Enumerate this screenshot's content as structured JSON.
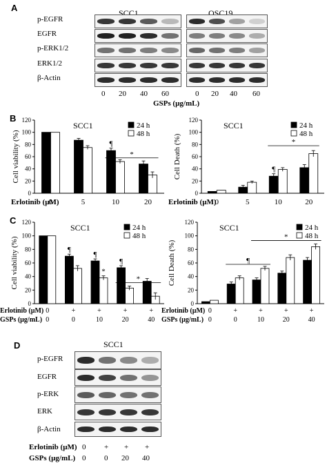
{
  "panels": {
    "A": {
      "letter": "A",
      "cell_lines": [
        "SCC1",
        "OSC19"
      ],
      "rows": [
        "p-EGFR",
        "EGFR",
        "p-ERK1/2",
        "ERK1/2",
        "β-Actin"
      ],
      "doses": [
        "0",
        "20",
        "40",
        "60"
      ],
      "xlabel": "GSPs (µg/mL)",
      "band_intensity": {
        "SCC1": [
          [
            0.85,
            0.85,
            0.7,
            0.3
          ],
          [
            0.95,
            0.95,
            0.9,
            0.6
          ],
          [
            0.6,
            0.6,
            0.55,
            0.5
          ],
          [
            0.85,
            0.85,
            0.85,
            0.85
          ],
          [
            0.9,
            0.9,
            0.9,
            0.9
          ]
        ],
        "OSC19": [
          [
            0.9,
            0.75,
            0.4,
            0.2
          ],
          [
            0.55,
            0.55,
            0.5,
            0.35
          ],
          [
            0.65,
            0.6,
            0.55,
            0.4
          ],
          [
            0.85,
            0.85,
            0.85,
            0.85
          ],
          [
            0.9,
            0.9,
            0.9,
            0.9
          ]
        ]
      }
    },
    "B": {
      "letter": "B"
    },
    "C": {
      "letter": "C"
    },
    "D": {
      "letter": "D",
      "cell_line": "SCC1",
      "rows": [
        "p-EGFR",
        "EGFR",
        "p-ERK",
        "ERK",
        "β-Actin"
      ],
      "erlotinib_label": "Erlotinib (µM)",
      "gsps_label": "GSPs (µg/mL)",
      "erlotinib": [
        "0",
        "+",
        "+",
        "+"
      ],
      "gsps": [
        "0",
        "0",
        "20",
        "40"
      ],
      "band_intensity": [
        [
          0.9,
          0.6,
          0.5,
          0.35
        ],
        [
          0.9,
          0.8,
          0.6,
          0.45
        ],
        [
          0.7,
          0.65,
          0.6,
          0.6
        ],
        [
          0.85,
          0.85,
          0.85,
          0.85
        ],
        [
          0.9,
          0.9,
          0.9,
          0.9
        ]
      ]
    }
  },
  "chart_data": [
    {
      "id": "B-viability",
      "type": "bar",
      "title": "SCC1",
      "ylabel": "Cell viability (%)",
      "ylim": [
        0,
        120
      ],
      "yticks": [
        0,
        20,
        40,
        60,
        80,
        100,
        120
      ],
      "xrow_label": "Erlotinib (µM)",
      "categories": [
        "0",
        "5",
        "10",
        "20"
      ],
      "series": [
        {
          "name": "24 h",
          "color": "#000000",
          "values": [
            100,
            87,
            70,
            48
          ],
          "err": [
            0,
            3,
            4,
            5
          ]
        },
        {
          "name": "48 h",
          "color": "#ffffff",
          "values": [
            100,
            75,
            52,
            30
          ],
          "err": [
            0,
            3,
            3,
            5
          ]
        }
      ],
      "annotations": [
        {
          "text": "¶",
          "cat": 2,
          "series": 0
        },
        {
          "text": "*",
          "line": [
            2,
            3
          ],
          "y": 58
        }
      ]
    },
    {
      "id": "B-death",
      "type": "bar",
      "title": "SCC1",
      "ylabel": "Cell Death (%)",
      "ylim": [
        0,
        120
      ],
      "yticks": [
        0,
        20,
        40,
        60,
        80,
        100,
        120
      ],
      "xrow_label": "Erlotinib (µM)",
      "categories": [
        "0",
        "5",
        "10",
        "20"
      ],
      "series": [
        {
          "name": "24 h",
          "color": "#000000",
          "values": [
            3,
            10,
            28,
            42
          ],
          "err": [
            0,
            3,
            4,
            5
          ]
        },
        {
          "name": "48 h",
          "color": "#ffffff",
          "values": [
            5,
            18,
            39,
            65
          ],
          "err": [
            0,
            2,
            3,
            5
          ]
        }
      ],
      "annotations": [
        {
          "text": "¶",
          "cat": 2,
          "series": 0
        },
        {
          "text": "*",
          "line": [
            2,
            3
          ],
          "y": 78
        }
      ]
    },
    {
      "id": "C-viability",
      "type": "bar",
      "title": "SCC1",
      "ylabel": "Cell viability (%)",
      "ylim": [
        0,
        120
      ],
      "yticks": [
        0,
        20,
        40,
        60,
        80,
        100,
        120
      ],
      "xrows": [
        {
          "label": "Erlotinib (µM)",
          "values": [
            "0",
            "+",
            "+",
            "+",
            "+"
          ]
        },
        {
          "label": "GSPs (µg/mL)",
          "values": [
            "0",
            "0",
            "10",
            "20",
            "40"
          ]
        }
      ],
      "series": [
        {
          "name": "24 h",
          "color": "#000000",
          "values": [
            100,
            70,
            63,
            53,
            33
          ],
          "err": [
            0,
            3,
            3,
            3,
            4
          ]
        },
        {
          "name": "48 h",
          "color": "#ffffff",
          "values": [
            100,
            52,
            38,
            23,
            11
          ],
          "err": [
            0,
            4,
            3,
            3,
            5
          ]
        }
      ],
      "annotations": [
        {
          "text": "¶",
          "cat": 1,
          "series": 0
        },
        {
          "text": "¶",
          "cat": 2,
          "series": 0
        },
        {
          "text": "*",
          "cat": 2,
          "series": 1
        },
        {
          "text": "¶",
          "cat": 3,
          "series": 0
        },
        {
          "text": "*",
          "line": [
            3,
            4
          ],
          "y": 31
        }
      ]
    },
    {
      "id": "C-death",
      "type": "bar",
      "title": "SCC1",
      "ylabel": "Cell Death (%)",
      "ylim": [
        0,
        120
      ],
      "yticks": [
        0,
        20,
        40,
        60,
        80,
        100,
        120
      ],
      "xrows": [
        {
          "label": "Erlotinib (µM)",
          "values": [
            "0",
            "+",
            "+",
            "+",
            "+"
          ]
        },
        {
          "label": "GSPs (µg/mL)",
          "values": [
            "0",
            "0",
            "10",
            "20",
            "40"
          ]
        }
      ],
      "series": [
        {
          "name": "24 h",
          "color": "#000000",
          "values": [
            3,
            29,
            35,
            45,
            64
          ],
          "err": [
            0,
            3,
            3,
            3,
            4
          ]
        },
        {
          "name": "48 h",
          "color": "#ffffff",
          "values": [
            5,
            38,
            52,
            68,
            84
          ],
          "err": [
            0,
            3,
            3,
            4,
            4
          ]
        }
      ],
      "annotations": [
        {
          "text": "¶",
          "line": [
            1,
            2
          ],
          "y": 58
        },
        {
          "text": "*",
          "line": [
            2,
            4
          ],
          "y": 93
        }
      ]
    }
  ]
}
